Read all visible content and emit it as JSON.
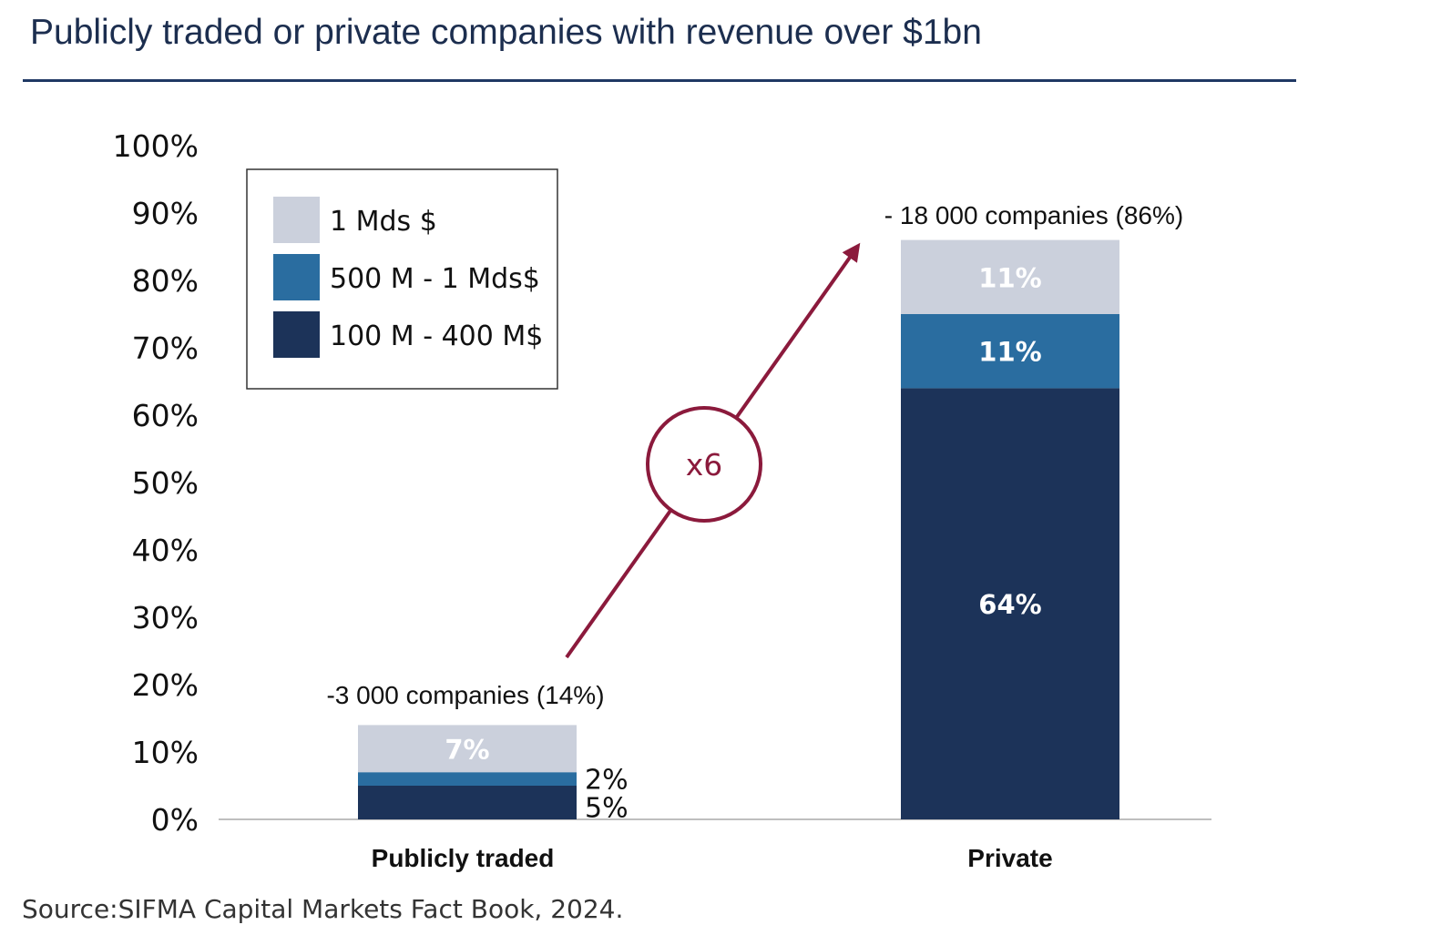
{
  "title": "Publicly traded or private companies with revenue over $1bn",
  "source": "Source:SIFMA Capital Markets Fact Book, 2024.",
  "colors": {
    "title": "#1c2e4f",
    "rule": "#1f3864",
    "series_1mds": "#cbd0dc",
    "series_500m": "#2a6da0",
    "series_100m": "#1c3359",
    "arrow": "#8b1a3c"
  },
  "chart_data": {
    "type": "bar",
    "stacked": true,
    "categories": [
      "Publicly traded",
      "Private"
    ],
    "series": [
      {
        "name": "100 M - 400 M$",
        "values": [
          5,
          64
        ],
        "labels": [
          "5%",
          "64%"
        ]
      },
      {
        "name": "500 M - 1 Mds$",
        "values": [
          2,
          11
        ],
        "labels": [
          "2%",
          "11%"
        ]
      },
      {
        "name": "1 Mds $",
        "values": [
          7,
          11
        ],
        "labels": [
          "7%",
          "11%"
        ]
      }
    ],
    "ylim": [
      0,
      100
    ],
    "yticks": [
      "0%",
      "10%",
      "20%",
      "30%",
      "40%",
      "50%",
      "60%",
      "70%",
      "80%",
      "90%",
      "100%"
    ],
    "totals_annotations": [
      "-3 000 companies (14%)",
      "- 18 000 companies (86%)"
    ],
    "growth_label": "x6",
    "legend_position": "top-left",
    "grid": false
  }
}
